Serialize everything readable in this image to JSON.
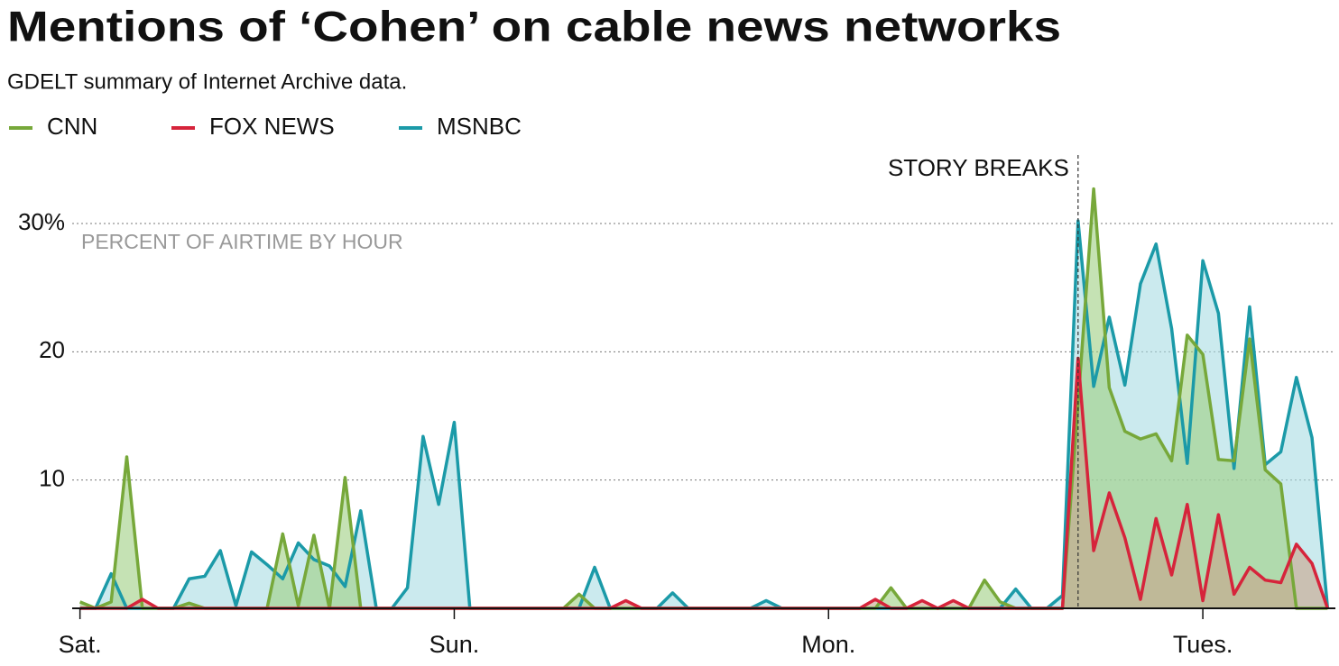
{
  "chart_data": {
    "type": "area",
    "title": "Mentions of ‘Cohen’ on cable news networks",
    "subtitle": "GDELT summary of Internet Archive data.",
    "y_label": "PERCENT OF AIRTIME BY HOUR",
    "annotation": {
      "x": 64,
      "text": "STORY BREAKS"
    },
    "x": [
      0,
      1,
      2,
      3,
      4,
      5,
      6,
      7,
      8,
      9,
      10,
      11,
      12,
      13,
      14,
      15,
      16,
      17,
      18,
      19,
      20,
      21,
      22,
      23,
      24,
      25,
      26,
      27,
      28,
      29,
      30,
      31,
      32,
      33,
      34,
      35,
      36,
      37,
      38,
      39,
      40,
      41,
      42,
      43,
      44,
      45,
      46,
      47,
      48,
      49,
      50,
      51,
      52,
      53,
      54,
      55,
      56,
      57,
      58,
      59,
      60,
      61,
      62,
      63,
      64,
      65,
      66,
      67,
      68,
      69,
      70,
      71,
      72,
      73,
      74,
      75,
      76,
      77,
      78,
      79,
      80
    ],
    "series": [
      {
        "name": "MSNBC",
        "color": "#1b9aa8",
        "fill": "#a8dce3",
        "values": [
          0,
          0,
          2.7,
          0,
          0,
          0,
          0,
          2.3,
          2.5,
          4.5,
          0.2,
          4.4,
          3.4,
          2.3,
          5.1,
          3.8,
          3.3,
          1.7,
          7.6,
          0,
          0,
          1.6,
          13.4,
          8.1,
          14.5,
          0,
          0,
          0,
          0,
          0,
          0,
          0,
          0,
          3.2,
          0,
          0,
          0,
          0,
          1.2,
          0,
          0,
          0,
          0,
          0,
          0.6,
          0,
          0,
          0,
          0,
          0,
          0,
          0,
          0,
          0,
          0,
          0,
          0,
          0,
          0,
          0,
          1.5,
          0,
          0,
          1,
          30.2,
          17.3,
          22.7,
          17.4,
          25.3,
          28.4,
          21.8,
          11.3,
          27.1,
          23,
          10.9,
          23.5,
          11.2,
          12.2,
          18,
          13.3,
          0
        ]
      },
      {
        "name": "CNN",
        "color": "#77a83a",
        "fill": "#9fcf82",
        "values": [
          0.5,
          0,
          0.5,
          11.8,
          0,
          0,
          0,
          0.4,
          0,
          0,
          0,
          0,
          0,
          5.8,
          0.2,
          5.7,
          0,
          10.2,
          0,
          0,
          0,
          0,
          0,
          0,
          0,
          0,
          0,
          0,
          0,
          0,
          0,
          0,
          1.1,
          0,
          0,
          0,
          0,
          0,
          0,
          0,
          0,
          0,
          0,
          0,
          0,
          0,
          0,
          0,
          0,
          0,
          0,
          0,
          1.6,
          0,
          0,
          0,
          0,
          0,
          2.2,
          0.5,
          0,
          0,
          0,
          0,
          16,
          32.7,
          17.2,
          13.8,
          13.2,
          13.6,
          11.5,
          21.3,
          19.8,
          11.6,
          11.5,
          21,
          10.8,
          9.7,
          0,
          0,
          0
        ]
      },
      {
        "name": "FOX NEWS",
        "color": "#d6243b",
        "fill": "#c9a48a",
        "values": [
          0,
          0,
          0,
          0,
          0.7,
          0,
          0,
          0,
          0,
          0,
          0,
          0,
          0,
          0,
          0,
          0,
          0,
          0,
          0,
          0,
          0,
          0,
          0,
          0,
          0,
          0,
          0,
          0,
          0,
          0,
          0,
          0,
          0,
          0,
          0,
          0.6,
          0,
          0,
          0,
          0,
          0,
          0,
          0,
          0,
          0,
          0,
          0,
          0,
          0,
          0,
          0,
          0.7,
          0,
          0,
          0.6,
          0,
          0.6,
          0,
          0,
          0,
          0,
          0,
          0,
          0,
          19.5,
          4.5,
          9,
          5.5,
          0.7,
          7,
          2.6,
          8.1,
          0.6,
          7.3,
          1.1,
          3.2,
          2.2,
          2,
          5,
          3.5,
          0
        ]
      }
    ],
    "legend_order": [
      "CNN",
      "FOX NEWS",
      "MSNBC"
    ],
    "xlim": [
      -0.5,
      80.5
    ],
    "xticks": [
      {
        "value": 0,
        "label": "Sat."
      },
      {
        "value": 24,
        "label": "Sun."
      },
      {
        "value": 48,
        "label": "Mon."
      },
      {
        "value": 72,
        "label": "Tues."
      }
    ],
    "ylim": [
      0,
      30
    ],
    "yticks": [
      10,
      20,
      {
        "value": 30,
        "label": "30%"
      }
    ],
    "grid": true
  }
}
